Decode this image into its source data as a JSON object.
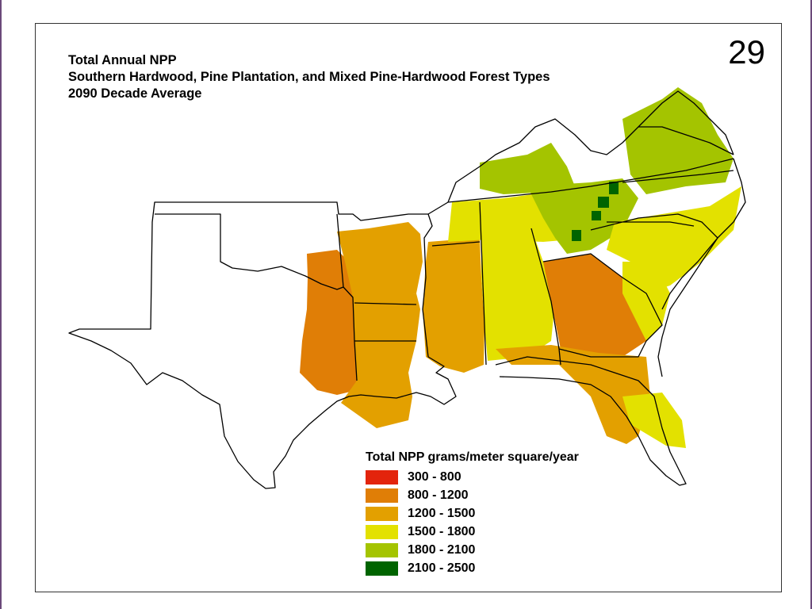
{
  "slide": {
    "number": "29"
  },
  "title": {
    "line1": "Total Annual NPP",
    "line2": "Southern Hardwood, Pine Plantation, and Mixed Pine-Hardwood Forest Types",
    "line3": "2090 Decade Average"
  },
  "legend": {
    "title": "Total NPP grams/meter square/year",
    "items": [
      {
        "label": "300 - 800",
        "color": "#e3240c"
      },
      {
        "label": "800 - 1200",
        "color": "#e07e06"
      },
      {
        "label": "1200 - 1500",
        "color": "#e3a000"
      },
      {
        "label": "1500 - 1800",
        "color": "#e3e100"
      },
      {
        "label": "1800 - 2100",
        "color": "#a4c400"
      },
      {
        "label": "2100 - 2500",
        "color": "#006400"
      }
    ]
  },
  "colors": {
    "frame_border": "#333333",
    "state_outline": "#000000",
    "slide_edge": "#6b4a7a"
  }
}
